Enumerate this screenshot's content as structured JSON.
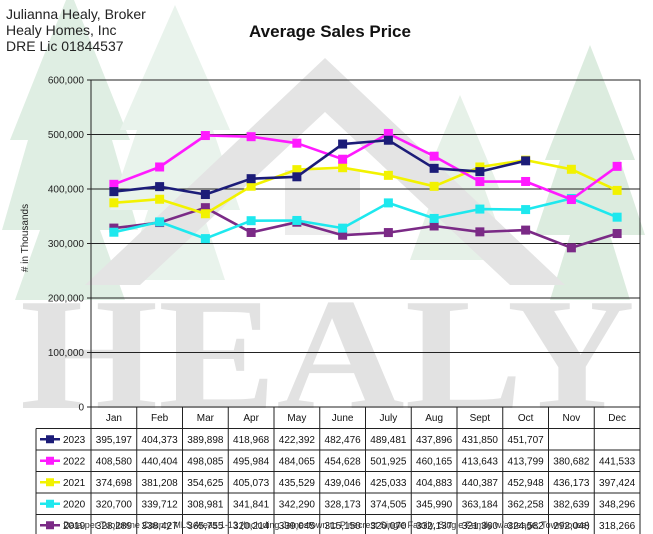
{
  "broker": {
    "name": "Julianna Healy, Broker",
    "company": "Healy Homes, Inc",
    "license": "DRE Lic 01844537"
  },
  "watermark": {
    "text": "HEALY"
  },
  "footnote": "Data per Tuolumne County MLS Areas 1-13 (Including Jamestown to Pinecrest Single Family, Single Family w/acreage, Townhouse)",
  "chart_data": {
    "type": "line",
    "title": "Average Sales Price",
    "ylabel": "# in Thousands",
    "xlabel": "",
    "ylim": [
      0,
      600000
    ],
    "yticks": [
      0,
      100000,
      200000,
      300000,
      400000,
      500000,
      600000
    ],
    "ytick_labels": [
      "0",
      "100,000",
      "200,000",
      "300,000",
      "400,000",
      "500,000",
      "600,000"
    ],
    "grid": true,
    "legend": "data-table",
    "categories": [
      "Jan",
      "Feb",
      "Mar",
      "Apr",
      "May",
      "June",
      "July",
      "Aug",
      "Sept",
      "Oct",
      "Nov",
      "Dec"
    ],
    "series": [
      {
        "name": "2023",
        "color": "#1c1c78",
        "values": [
          395197,
          404373,
          389898,
          418968,
          422392,
          482476,
          489481,
          437896,
          431850,
          451707,
          null,
          null
        ],
        "labels": [
          "395,197",
          "404,373",
          "389,898",
          "418,968",
          "422,392",
          "482,476",
          "489,481",
          "437,896",
          "431,850",
          "451,707",
          "",
          ""
        ]
      },
      {
        "name": "2022",
        "color": "#ff1aff",
        "values": [
          408580,
          440404,
          498085,
          495984,
          484065,
          454628,
          501925,
          460165,
          413643,
          413799,
          380682,
          441533
        ],
        "labels": [
          "408,580",
          "440,404",
          "498,085",
          "495,984",
          "484,065",
          "454,628",
          "501,925",
          "460,165",
          "413,643",
          "413,799",
          "380,682",
          "441,533"
        ]
      },
      {
        "name": "2021",
        "color": "#f2f200",
        "values": [
          374698,
          381208,
          354625,
          405073,
          435529,
          439046,
          425033,
          404883,
          440387,
          452948,
          436173,
          397424
        ],
        "labels": [
          "374,698",
          "381,208",
          "354,625",
          "405,073",
          "435,529",
          "439,046",
          "425,033",
          "404,883",
          "440,387",
          "452,948",
          "436,173",
          "397,424"
        ]
      },
      {
        "name": "2020",
        "color": "#1ee8ee",
        "values": [
          320700,
          339712,
          308981,
          341841,
          342290,
          328173,
          374505,
          345990,
          363184,
          362258,
          382639,
          348296
        ],
        "labels": [
          "320,700",
          "339,712",
          "308,981",
          "341,841",
          "342,290",
          "328,173",
          "374,505",
          "345,990",
          "363,184",
          "362,258",
          "382,639",
          "348,296"
        ]
      },
      {
        "name": "2019",
        "color": "#7b2a86",
        "values": [
          328289,
          338427,
          365755,
          320214,
          339045,
          315150,
          320070,
          332137,
          321360,
          324582,
          292048,
          318266
        ],
        "labels": [
          "328,289",
          "338,427",
          "365,755",
          "320,214",
          "339,045",
          "315,150",
          "320,070",
          "332,137",
          "321,360",
          "324,582",
          "292,048",
          "318,266"
        ]
      }
    ]
  }
}
